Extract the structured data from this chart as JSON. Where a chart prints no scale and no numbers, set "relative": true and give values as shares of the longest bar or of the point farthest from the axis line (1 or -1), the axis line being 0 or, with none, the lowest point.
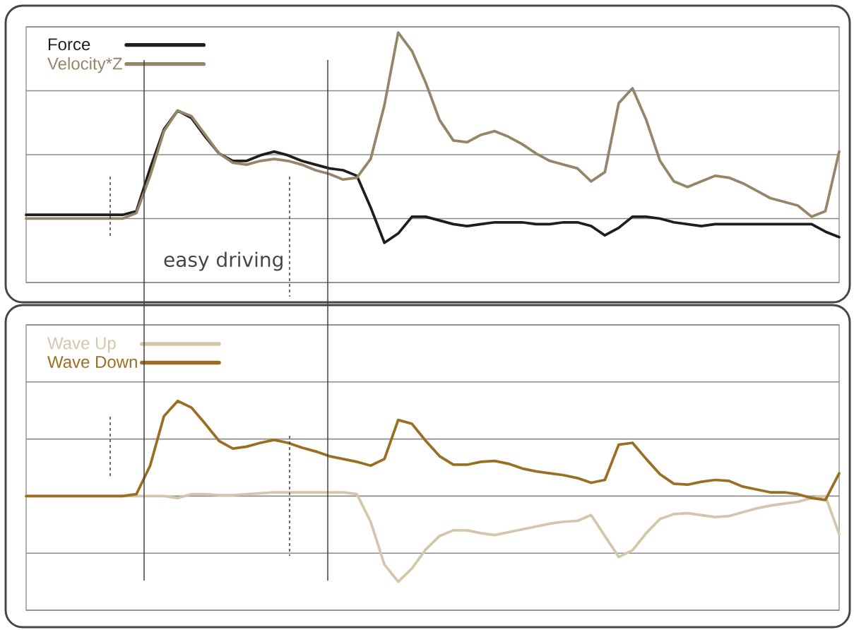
{
  "chart_data": [
    {
      "type": "line",
      "relative": true,
      "tick_labels": false,
      "grid": "y",
      "legend": "top left",
      "categories": [
        null,
        null,
        null,
        null,
        null,
        null,
        null,
        null,
        null,
        null,
        null,
        null,
        null,
        null,
        null,
        null,
        null,
        null,
        null,
        null,
        null,
        null,
        null,
        null,
        null,
        null,
        null,
        null,
        null,
        null,
        null,
        null,
        null,
        null,
        null,
        null,
        null,
        null,
        null,
        null,
        null,
        null,
        null,
        null,
        null,
        null,
        null,
        null,
        null,
        null,
        null,
        null,
        null,
        null,
        null,
        null,
        null,
        null,
        null,
        null
      ],
      "series": [
        {
          "name": "Force",
          "color": "#1e1e1e",
          "values": [
            0.02,
            0.02,
            0.02,
            0.02,
            0.02,
            0.02,
            0.02,
            0.02,
            0.04,
            0.27,
            0.48,
            0.58,
            0.54,
            0.44,
            0.35,
            0.31,
            0.31,
            0.34,
            0.36,
            0.34,
            0.31,
            0.29,
            0.27,
            0.26,
            0.23,
            0.06,
            -0.13,
            -0.08,
            0.01,
            0.01,
            -0.01,
            -0.03,
            -0.04,
            -0.03,
            -0.02,
            -0.02,
            -0.02,
            -0.03,
            -0.03,
            -0.02,
            -0.02,
            -0.04,
            -0.09,
            -0.05,
            0.01,
            0.01,
            0,
            -0.02,
            -0.03,
            -0.04,
            -0.03,
            -0.03,
            -0.03,
            -0.03,
            -0.03,
            -0.03,
            -0.03,
            -0.03,
            -0.07,
            -0.1
          ]
        },
        {
          "name": "Velocity*Z",
          "color": "#958569",
          "values": [
            0,
            0,
            0,
            0,
            0,
            0,
            0,
            0,
            0.03,
            0.23,
            0.47,
            0.58,
            0.55,
            0.45,
            0.35,
            0.3,
            0.29,
            0.31,
            0.32,
            0.31,
            0.29,
            0.26,
            0.24,
            0.21,
            0.22,
            0.32,
            0.61,
            1.0,
            0.9,
            0.73,
            0.53,
            0.42,
            0.41,
            0.45,
            0.47,
            0.44,
            0.4,
            0.35,
            0.31,
            0.29,
            0.27,
            0.2,
            0.25,
            0.62,
            0.7,
            0.53,
            0.31,
            0.2,
            0.17,
            0.2,
            0.23,
            0.22,
            0.19,
            0.15,
            0.11,
            0.09,
            0.07,
            0.01,
            0.04,
            0.36
          ]
        }
      ],
      "annotations": [
        "easy driving"
      ]
    },
    {
      "type": "line",
      "relative": true,
      "tick_labels": false,
      "grid": "y",
      "legend": "top left",
      "categories": [
        null,
        null,
        null,
        null,
        null,
        null,
        null,
        null,
        null,
        null,
        null,
        null,
        null,
        null,
        null,
        null,
        null,
        null,
        null,
        null,
        null,
        null,
        null,
        null,
        null,
        null,
        null,
        null,
        null,
        null,
        null,
        null,
        null,
        null,
        null,
        null,
        null,
        null,
        null,
        null,
        null,
        null,
        null,
        null,
        null,
        null,
        null,
        null,
        null,
        null,
        null,
        null,
        null,
        null,
        null,
        null,
        null,
        null,
        null,
        null
      ],
      "series": [
        {
          "name": "Wave Up",
          "color": "#d4c6ab",
          "values": [
            0,
            0,
            0,
            0,
            0,
            0,
            0,
            0,
            0,
            0,
            0,
            -0.02,
            0.02,
            0.02,
            0.01,
            0.01,
            0.02,
            0.03,
            0.04,
            0.04,
            0.04,
            0.04,
            0.04,
            0.04,
            0.02,
            -0.27,
            -0.72,
            -0.9,
            -0.76,
            -0.56,
            -0.42,
            -0.36,
            -0.36,
            -0.39,
            -0.41,
            -0.38,
            -0.35,
            -0.32,
            -0.29,
            -0.27,
            -0.26,
            -0.2,
            -0.42,
            -0.64,
            -0.57,
            -0.39,
            -0.24,
            -0.19,
            -0.18,
            -0.2,
            -0.22,
            -0.21,
            -0.17,
            -0.13,
            -0.1,
            -0.08,
            -0.06,
            -0.02,
            0,
            -0.4
          ]
        },
        {
          "name": "Wave Down",
          "color": "#9a6f24",
          "values": [
            0,
            0,
            0,
            0,
            0,
            0,
            0,
            0,
            0.02,
            0.32,
            0.84,
            1.0,
            0.93,
            0.76,
            0.58,
            0.5,
            0.52,
            0.56,
            0.59,
            0.56,
            0.51,
            0.47,
            0.42,
            0.39,
            0.36,
            0.32,
            0.39,
            0.8,
            0.76,
            0.58,
            0.42,
            0.33,
            0.33,
            0.36,
            0.37,
            0.34,
            0.29,
            0.26,
            0.24,
            0.22,
            0.19,
            0.14,
            0.17,
            0.54,
            0.56,
            0.39,
            0.23,
            0.13,
            0.12,
            0.15,
            0.17,
            0.16,
            0.1,
            0.07,
            0.04,
            0.04,
            0.02,
            -0.02,
            -0.04,
            0.24
          ]
        }
      ]
    }
  ]
}
